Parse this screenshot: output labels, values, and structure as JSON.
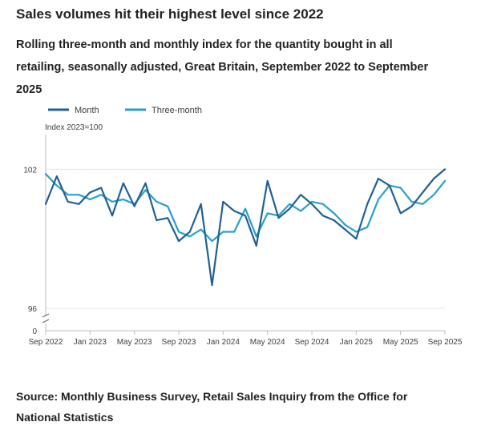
{
  "header": {
    "title": "Sales volumes hit their highest level since 2022",
    "subtitle": "Rolling three-month and monthly index for the quantity bought in all retailing, seasonally adjusted, Great Britain, September 2022 to September 2025"
  },
  "footer": {
    "source": "Source: Monthly Business Survey, Retail Sales Inquiry from the Office for National Statistics"
  },
  "chart_data": {
    "type": "line",
    "title": "Sales volumes hit their highest level since 2022",
    "ylabel": "Index 2023=100",
    "xlabel": "",
    "ylim": [
      96,
      103.5
    ],
    "y_break": true,
    "y_ticks": [
      "0",
      "96",
      "102"
    ],
    "legend_position": "top-left",
    "grid": "horizontal",
    "x_tick_labels": [
      "Sep 2022",
      "Jan 2023",
      "May 2023",
      "Sep 2023",
      "Jan 2024",
      "May 2024",
      "Sep 2024",
      "Jan 2025",
      "May 2025",
      "Sep 2025"
    ],
    "x_tick_indices": [
      0,
      4,
      8,
      12,
      16,
      20,
      24,
      28,
      32,
      36
    ],
    "x": [
      "Sep 2022",
      "Oct 2022",
      "Nov 2022",
      "Dec 2022",
      "Jan 2023",
      "Feb 2023",
      "Mar 2023",
      "Apr 2023",
      "May 2023",
      "Jun 2023",
      "Jul 2023",
      "Aug 2023",
      "Sep 2023",
      "Oct 2023",
      "Nov 2023",
      "Dec 2023",
      "Jan 2024",
      "Feb 2024",
      "Mar 2024",
      "Apr 2024",
      "May 2024",
      "Jun 2024",
      "Jul 2024",
      "Aug 2024",
      "Sep 2024",
      "Oct 2024",
      "Nov 2024",
      "Dec 2024",
      "Jan 2025",
      "Feb 2025",
      "Mar 2025",
      "Apr 2025",
      "May 2025",
      "Jun 2025",
      "Jul 2025",
      "Aug 2025",
      "Sep 2025"
    ],
    "colors": {
      "Month": "#206095",
      "Three-month": "#27a0cc",
      "grid": "#e5e5e5",
      "axis": "#bcbcbc"
    },
    "series": [
      {
        "name": "Month",
        "values": [
          100.5,
          101.7,
          100.6,
          100.5,
          101.0,
          101.2,
          100.0,
          101.4,
          100.4,
          101.4,
          99.8,
          99.9,
          98.9,
          99.3,
          100.5,
          97.0,
          100.6,
          100.2,
          100.0,
          98.7,
          101.5,
          99.9,
          100.3,
          100.9,
          100.5,
          100.0,
          99.8,
          99.4,
          99.0,
          100.5,
          101.6,
          101.3,
          100.1,
          100.4,
          101.0,
          101.6,
          102.0
        ]
      },
      {
        "name": "Three-month",
        "values": [
          101.8,
          101.3,
          100.9,
          100.9,
          100.7,
          100.9,
          100.6,
          100.7,
          100.5,
          101.1,
          100.6,
          100.4,
          99.3,
          99.1,
          99.4,
          98.9,
          99.3,
          99.3,
          100.3,
          99.1,
          100.1,
          100.0,
          100.5,
          100.2,
          100.6,
          100.5,
          100.1,
          99.6,
          99.3,
          99.5,
          100.7,
          101.3,
          101.2,
          100.6,
          100.5,
          100.9,
          101.5
        ]
      }
    ]
  }
}
